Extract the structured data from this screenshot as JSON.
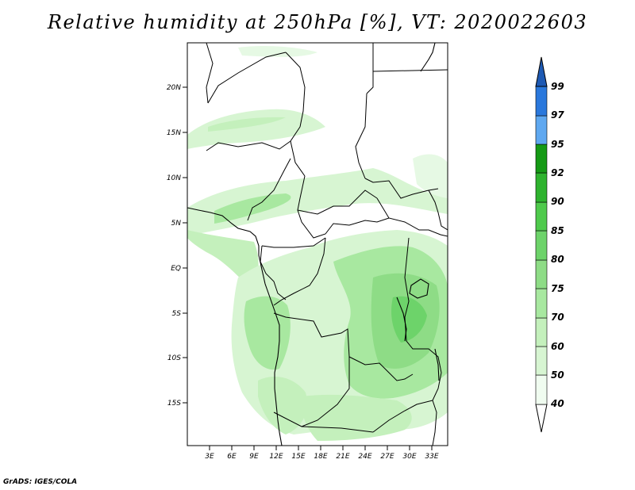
{
  "title": "Relative humidity at 250hPa [%], VT: 2020022603",
  "credit": "GrADS: IGES/COLA",
  "map": {
    "lon_ticks": [
      "3E",
      "6E",
      "9E",
      "12E",
      "15E",
      "18E",
      "21E",
      "24E",
      "27E",
      "30E",
      "33E"
    ],
    "lat_ticks": [
      "20N",
      "15N",
      "10N",
      "5N",
      "EQ",
      "5S",
      "10S",
      "15S"
    ],
    "lon_range": [
      0,
      35
    ],
    "lat_range": [
      -20,
      25
    ]
  },
  "colorbar": {
    "levels": [
      "40",
      "50",
      "60",
      "70",
      "75",
      "80",
      "85",
      "90",
      "92",
      "95",
      "97",
      "99"
    ],
    "colors": [
      "#f0fcf0",
      "#d7f5d2",
      "#c4f0bc",
      "#a8e8a0",
      "#8edc86",
      "#6dd36a",
      "#4fca4c",
      "#2eb32e",
      "#159a15",
      "#0d850d",
      "#5fa8f0",
      "#2a78dc",
      "#1e5ab4"
    ]
  }
}
